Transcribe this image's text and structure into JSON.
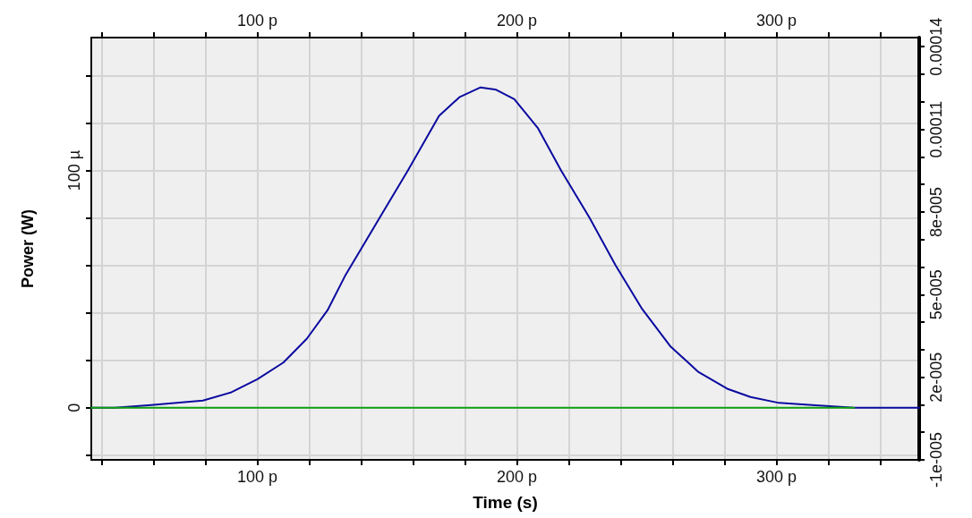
{
  "chart_data": {
    "type": "line",
    "xlabel": "Time (s)",
    "ylabel": "Power (W)",
    "xlim": [
      36,
      355
    ],
    "xticks": [
      {
        "value": 40,
        "label": null
      },
      {
        "value": 60,
        "label": null
      },
      {
        "value": 80,
        "label": null
      },
      {
        "value": 100,
        "label": "100 p"
      },
      {
        "value": 120,
        "label": null
      },
      {
        "value": 140,
        "label": null
      },
      {
        "value": 160,
        "label": null
      },
      {
        "value": 180,
        "label": null
      },
      {
        "value": 200,
        "label": "200 p"
      },
      {
        "value": 220,
        "label": null
      },
      {
        "value": 240,
        "label": null
      },
      {
        "value": 260,
        "label": null
      },
      {
        "value": 280,
        "label": null
      },
      {
        "value": 300,
        "label": "300 p"
      },
      {
        "value": 320,
        "label": null
      },
      {
        "value": 340,
        "label": null
      }
    ],
    "x2lim": [
      36,
      355
    ],
    "x2ticks": [
      {
        "value": 40,
        "label": null
      },
      {
        "value": 60,
        "label": null
      },
      {
        "value": 80,
        "label": null
      },
      {
        "value": 100,
        "label": "100 p"
      },
      {
        "value": 120,
        "label": null
      },
      {
        "value": 140,
        "label": null
      },
      {
        "value": 160,
        "label": null
      },
      {
        "value": 180,
        "label": null
      },
      {
        "value": 200,
        "label": "200 p"
      },
      {
        "value": 220,
        "label": null
      },
      {
        "value": 240,
        "label": null
      },
      {
        "value": 260,
        "label": null
      },
      {
        "value": 280,
        "label": null
      },
      {
        "value": 300,
        "label": "300 p"
      },
      {
        "value": 320,
        "label": null
      },
      {
        "value": 340,
        "label": null
      }
    ],
    "ylim": [
      -22,
      156
    ],
    "yticks": [
      {
        "value": -20,
        "label": null
      },
      0,
      {
        "value": 20,
        "label": null
      },
      {
        "value": 40,
        "label": null
      },
      {
        "value": 60,
        "label": null
      },
      {
        "value": 80,
        "label": null
      },
      {
        "value": 100,
        "label": "100 µ"
      },
      {
        "value": 120,
        "label": null
      },
      {
        "value": 140,
        "label": null
      }
    ],
    "y2lim": [
      -1e-05,
      0.0001433
    ],
    "y2ticks": [
      {
        "value": -1e-05,
        "label": "-1e-005"
      },
      {
        "value": 0,
        "label": null
      },
      {
        "value": 1e-05,
        "label": null
      },
      {
        "value": 2e-05,
        "label": "2e-005"
      },
      {
        "value": 3e-05,
        "label": null
      },
      {
        "value": 4e-05,
        "label": null
      },
      {
        "value": 5e-05,
        "label": "5e-005"
      },
      {
        "value": 6e-05,
        "label": null
      },
      {
        "value": 7e-05,
        "label": null
      },
      {
        "value": 8e-05,
        "label": "8e-005"
      },
      {
        "value": 9e-05,
        "label": null
      },
      {
        "value": 0.0001,
        "label": null
      },
      {
        "value": 0.00011,
        "label": "0.00011"
      },
      {
        "value": 0.00012,
        "label": null
      },
      {
        "value": 0.00013,
        "label": null
      },
      {
        "value": 0.00014,
        "label": "0.00014"
      }
    ],
    "grid": true,
    "marker": "none",
    "line_style": "solid",
    "series": [
      {
        "color": "#0a0aa0",
        "x": [
          36,
          45,
          58,
          79,
          90,
          100,
          110,
          119,
          127,
          134,
          146,
          158,
          170,
          178,
          186,
          192,
          199,
          208,
          217,
          228,
          238,
          248,
          259,
          270,
          281,
          290,
          301,
          315,
          330,
          355
        ],
        "values": [
          0,
          0,
          1,
          3,
          6.5,
          12,
          19,
          29,
          41,
          56,
          78,
          100,
          123,
          131,
          135,
          134,
          130,
          118,
          100,
          80,
          60,
          42,
          26,
          15,
          8,
          4.5,
          2,
          1,
          0,
          0
        ]
      },
      {
        "color": "#10a010",
        "x": [
          36,
          330
        ],
        "values": [
          0,
          0
        ]
      }
    ]
  }
}
